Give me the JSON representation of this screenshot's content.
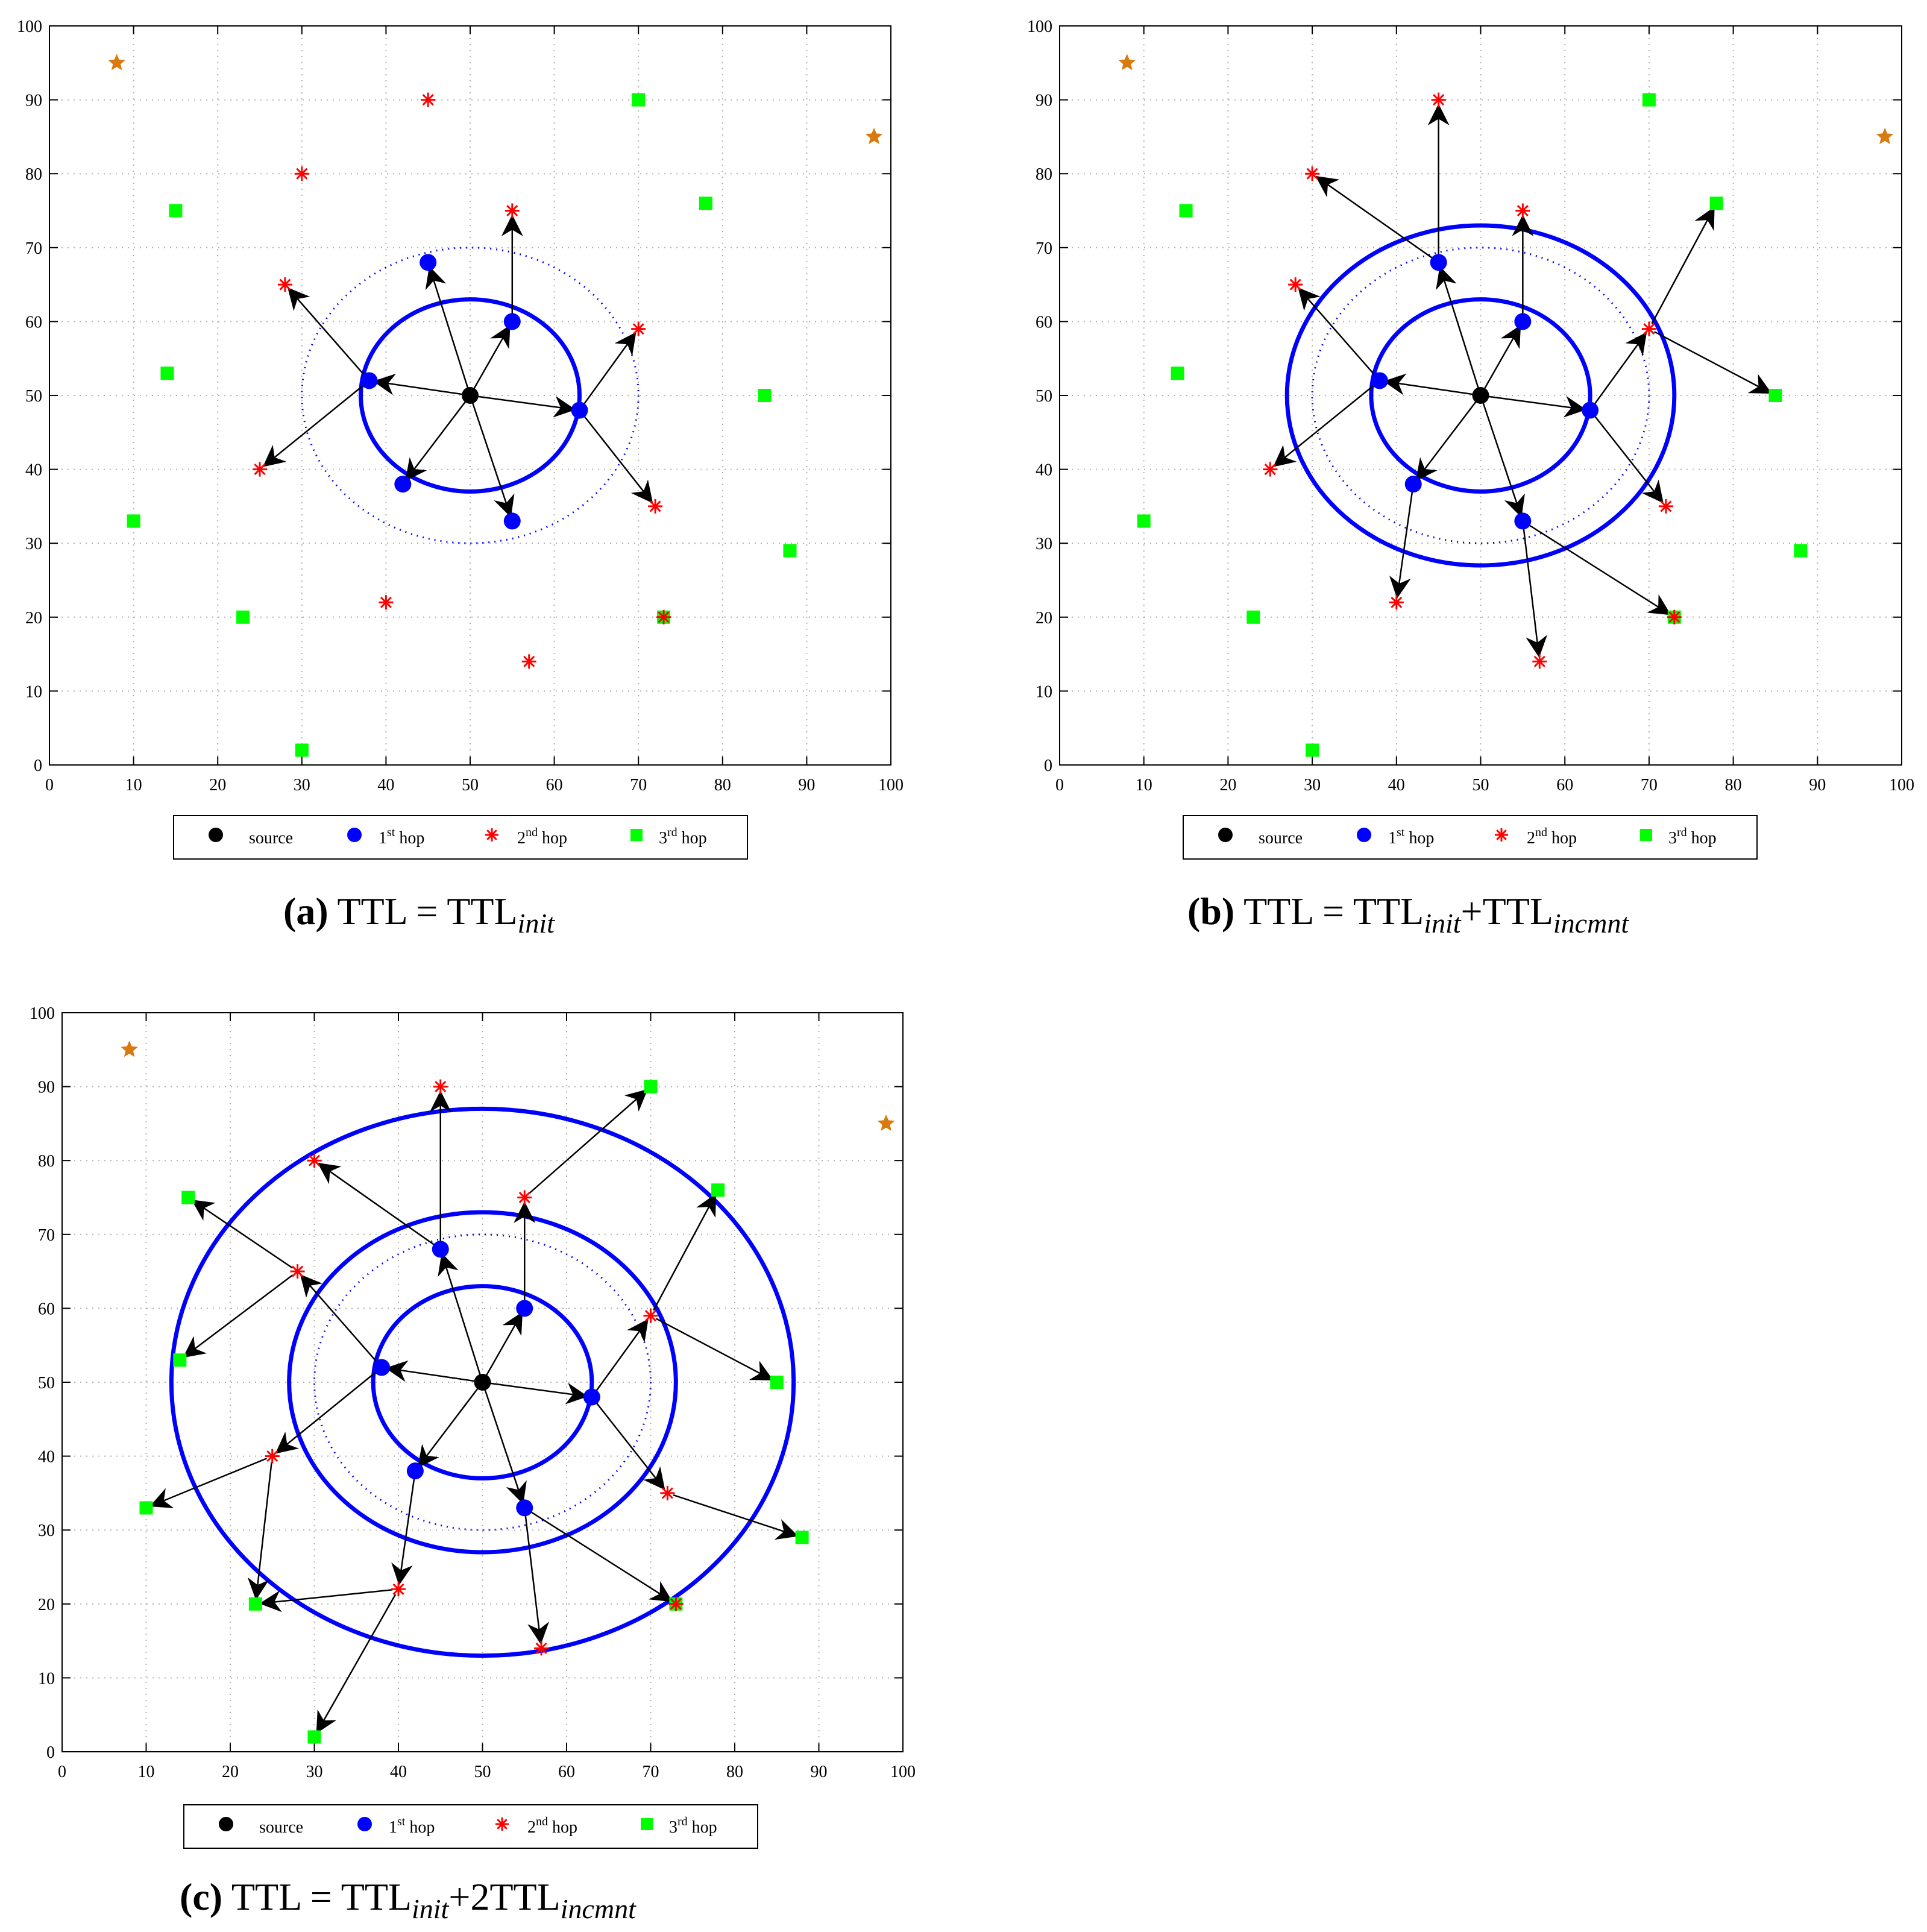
{
  "captions": [
    {
      "letter": "(a)",
      "text": "TTL = TTL",
      "sub1": "init",
      "mid": "",
      "sub2": ""
    },
    {
      "letter": "(b)",
      "text": "TTL = TTL",
      "sub1": "init",
      "mid": "+TTL",
      "sub2": "incmnt"
    },
    {
      "letter": "(c)",
      "text": "TTL = TTL",
      "sub1": "init",
      "mid": "+2TTL",
      "sub2": "incmnt"
    }
  ],
  "legend": {
    "items": [
      {
        "key": "source",
        "label": "source",
        "marker": "dot",
        "color": "#000000"
      },
      {
        "key": "hop1",
        "label": "1",
        "sup": "st",
        "after": " hop",
        "marker": "dot",
        "color": "#0000ff"
      },
      {
        "key": "hop2",
        "label": "2",
        "sup": "nd",
        "after": " hop",
        "marker": "asterisk",
        "color": "#ff0000"
      },
      {
        "key": "hop3",
        "label": "3",
        "sup": "rd",
        "after": " hop",
        "marker": "square",
        "color": "#00ff00"
      }
    ]
  },
  "chart_data": [
    {
      "type": "scatter",
      "panel": "a",
      "xlim": [
        0,
        100
      ],
      "ylim": [
        0,
        100
      ],
      "xticks": [
        0,
        10,
        20,
        30,
        40,
        50,
        60,
        70,
        80,
        90,
        100
      ],
      "yticks": [
        0,
        10,
        20,
        30,
        40,
        50,
        60,
        70,
        80,
        90,
        100
      ],
      "grid": true,
      "legend_position": "below",
      "rings_solid": [
        {
          "cx": 50,
          "cy": 50,
          "rx": 13,
          "ry": 13
        }
      ],
      "rings_dotted": [
        {
          "cx": 50,
          "cy": 50,
          "rx": 20,
          "ry": 20
        }
      ],
      "arrows": [
        [
          50,
          50,
          38,
          52
        ],
        [
          50,
          50,
          45,
          68
        ],
        [
          50,
          50,
          55,
          60
        ],
        [
          50,
          50,
          63,
          48
        ],
        [
          50,
          50,
          42,
          38
        ],
        [
          50,
          50,
          55,
          33
        ],
        [
          38,
          52,
          28,
          65
        ],
        [
          38,
          52,
          25,
          40
        ],
        [
          55,
          60,
          55,
          75
        ],
        [
          63,
          48,
          70,
          59
        ],
        [
          63,
          48,
          72,
          35
        ]
      ]
    },
    {
      "type": "scatter",
      "panel": "b",
      "xlim": [
        0,
        100
      ],
      "ylim": [
        0,
        100
      ],
      "xticks": [
        0,
        10,
        20,
        30,
        40,
        50,
        60,
        70,
        80,
        90,
        100
      ],
      "yticks": [
        0,
        10,
        20,
        30,
        40,
        50,
        60,
        70,
        80,
        90,
        100
      ],
      "grid": true,
      "legend_position": "below",
      "rings_solid": [
        {
          "cx": 50,
          "cy": 50,
          "rx": 13,
          "ry": 13
        },
        {
          "cx": 50,
          "cy": 50,
          "rx": 23,
          "ry": 23
        }
      ],
      "rings_dotted": [
        {
          "cx": 50,
          "cy": 50,
          "rx": 20,
          "ry": 20
        }
      ],
      "arrows": [
        [
          50,
          50,
          38,
          52
        ],
        [
          50,
          50,
          45,
          68
        ],
        [
          50,
          50,
          55,
          60
        ],
        [
          50,
          50,
          63,
          48
        ],
        [
          50,
          50,
          42,
          38
        ],
        [
          50,
          50,
          55,
          33
        ],
        [
          38,
          52,
          28,
          65
        ],
        [
          38,
          52,
          25,
          40
        ],
        [
          45,
          68,
          30,
          80
        ],
        [
          45,
          68,
          45,
          90
        ],
        [
          55,
          60,
          55,
          75
        ],
        [
          63,
          48,
          70,
          59
        ],
        [
          63,
          48,
          72,
          35
        ],
        [
          42,
          38,
          40,
          22
        ],
        [
          55,
          33,
          57,
          14
        ],
        [
          55,
          33,
          73,
          20
        ],
        [
          70,
          59,
          78,
          76
        ],
        [
          70,
          59,
          85,
          50
        ]
      ]
    },
    {
      "type": "scatter",
      "panel": "c",
      "xlim": [
        0,
        100
      ],
      "ylim": [
        0,
        100
      ],
      "xticks": [
        0,
        10,
        20,
        30,
        40,
        50,
        60,
        70,
        80,
        90,
        100
      ],
      "yticks": [
        0,
        10,
        20,
        30,
        40,
        50,
        60,
        70,
        80,
        90,
        100
      ],
      "grid": true,
      "legend_position": "below",
      "rings_solid": [
        {
          "cx": 50,
          "cy": 50,
          "rx": 13,
          "ry": 13
        },
        {
          "cx": 50,
          "cy": 50,
          "rx": 23,
          "ry": 23
        },
        {
          "cx": 50,
          "cy": 50,
          "rx": 37,
          "ry": 37
        }
      ],
      "rings_dotted": [
        {
          "cx": 50,
          "cy": 50,
          "rx": 20,
          "ry": 20
        }
      ],
      "arrows": [
        [
          50,
          50,
          38,
          52
        ],
        [
          50,
          50,
          45,
          68
        ],
        [
          50,
          50,
          55,
          60
        ],
        [
          50,
          50,
          63,
          48
        ],
        [
          50,
          50,
          42,
          38
        ],
        [
          50,
          50,
          55,
          33
        ],
        [
          38,
          52,
          28,
          65
        ],
        [
          38,
          52,
          25,
          40
        ],
        [
          45,
          68,
          30,
          80
        ],
        [
          45,
          68,
          45,
          90
        ],
        [
          55,
          60,
          55,
          75
        ],
        [
          63,
          48,
          70,
          59
        ],
        [
          63,
          48,
          72,
          35
        ],
        [
          42,
          38,
          40,
          22
        ],
        [
          55,
          33,
          57,
          14
        ],
        [
          55,
          33,
          73,
          20
        ],
        [
          28,
          65,
          15,
          75
        ],
        [
          28,
          65,
          14,
          53
        ],
        [
          25,
          40,
          10,
          33
        ],
        [
          25,
          40,
          23,
          20
        ],
        [
          40,
          22,
          23,
          20
        ],
        [
          40,
          22,
          30,
          2
        ],
        [
          55,
          75,
          70,
          90
        ],
        [
          70,
          59,
          78,
          76
        ],
        [
          70,
          59,
          85,
          50
        ],
        [
          72,
          35,
          88,
          29
        ]
      ]
    }
  ],
  "points": {
    "source": [
      [
        50,
        50
      ]
    ],
    "hop1": [
      [
        38,
        52
      ],
      [
        45,
        68
      ],
      [
        55,
        60
      ],
      [
        63,
        48
      ],
      [
        42,
        38
      ],
      [
        55,
        33
      ]
    ],
    "hop2": [
      [
        45,
        90
      ],
      [
        30,
        80
      ],
      [
        55,
        75
      ],
      [
        28,
        65
      ],
      [
        70,
        59
      ],
      [
        25,
        40
      ],
      [
        72,
        35
      ],
      [
        40,
        22
      ],
      [
        57,
        14
      ],
      [
        73,
        20
      ]
    ],
    "hop3": [
      [
        70,
        90
      ],
      [
        78,
        76
      ],
      [
        15,
        75
      ],
      [
        14,
        53
      ],
      [
        85,
        50
      ],
      [
        10,
        33
      ],
      [
        88,
        29
      ],
      [
        23,
        20
      ],
      [
        73,
        20
      ],
      [
        30,
        2
      ]
    ],
    "stars": [
      [
        8,
        95
      ],
      [
        98,
        85
      ]
    ],
    "colors": {
      "star": "#d97a0f",
      "arrow": "#000000",
      "ring": "#0000ff",
      "grid": "#b0b0b0"
    }
  }
}
